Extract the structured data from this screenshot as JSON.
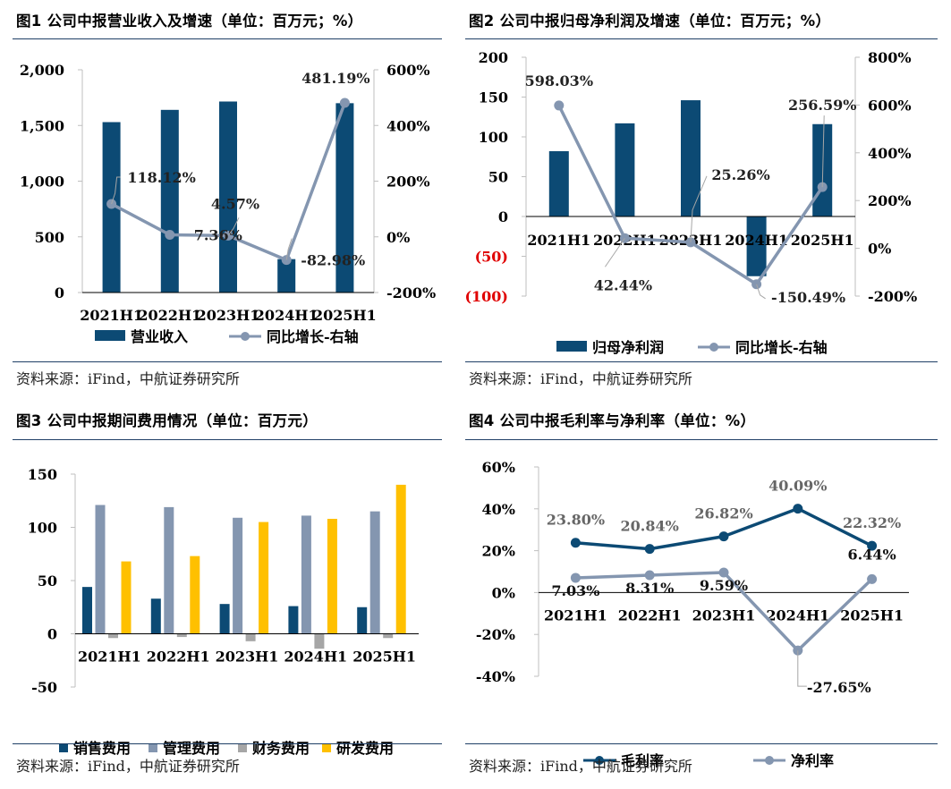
{
  "source_text": "资料来源：iFind，中航证券研究所",
  "colors": {
    "dark_blue": "#0c4a74",
    "grey_blue": "#8496b0",
    "grey": "#a6a6a6",
    "gold": "#ffc000",
    "neg_red": "#e00000",
    "rule": "#1f3f66"
  },
  "charts": [
    {
      "title": "图1  公司中报营业收入及增速（单位：百万元；%）",
      "chart_data": {
        "type": "bar+line",
        "categories": [
          "2021H1",
          "2022H1",
          "2023H1",
          "2024H1",
          "2025H1"
        ],
        "bars": {
          "name": "营业收入",
          "values": [
            1530,
            1640,
            1715,
            300,
            1700
          ]
        },
        "line": {
          "name": "同比增长-右轴",
          "values": [
            118.12,
            7.36,
            4.57,
            -82.98,
            481.19
          ],
          "labels": [
            "118.12%",
            "7.36%",
            "4.57%",
            "-82.98%",
            "481.19%"
          ]
        },
        "left_axis": {
          "min": 0,
          "max": 2000,
          "ticks": [
            "0",
            "500",
            "1,000",
            "1,500",
            "2,000"
          ]
        },
        "right_axis": {
          "min": -200,
          "max": 600,
          "ticks": [
            "-200%",
            "0%",
            "200%",
            "400%",
            "600%"
          ]
        }
      }
    },
    {
      "title": "图2  公司中报归母净利润及增速（单位：百万元；%）",
      "chart_data": {
        "type": "bar+line",
        "categories": [
          "2021H1",
          "2022H1",
          "2023H1",
          "2024H1",
          "2025H1"
        ],
        "bars": {
          "name": "归母净利润",
          "values": [
            82,
            117,
            146,
            -75,
            116
          ]
        },
        "line": {
          "name": "同比增长-右轴",
          "values": [
            598.03,
            42.44,
            25.26,
            -150.49,
            256.59
          ],
          "labels": [
            "598.03%",
            "42.44%",
            "25.26%",
            "-150.49%",
            "256.59%"
          ]
        },
        "left_axis": {
          "min": -100,
          "max": 200,
          "ticks": [
            "(100)",
            "(50)",
            "0",
            "50",
            "100",
            "150",
            "200"
          ]
        },
        "right_axis": {
          "min": -200,
          "max": 800,
          "ticks": [
            "-200%",
            "0%",
            "200%",
            "400%",
            "600%",
            "800%"
          ]
        }
      }
    },
    {
      "title": "图3  公司中报期间费用情况（单位：百万元）",
      "chart_data": {
        "type": "bar",
        "categories": [
          "2021H1",
          "2022H1",
          "2023H1",
          "2024H1",
          "2025H1"
        ],
        "series": [
          {
            "name": "销售费用",
            "values": [
              44,
              33,
              28,
              26,
              25
            ]
          },
          {
            "name": "管理费用",
            "values": [
              121,
              119,
              109,
              111,
              115
            ]
          },
          {
            "name": "财务费用",
            "values": [
              -4,
              -3,
              -7,
              -14,
              -4
            ]
          },
          {
            "name": "研发费用",
            "values": [
              68,
              73,
              105,
              108,
              140
            ]
          }
        ],
        "y_axis": {
          "min": -50,
          "max": 150,
          "ticks": [
            "-50",
            "0",
            "50",
            "100",
            "150"
          ]
        }
      }
    },
    {
      "title": "图4  公司中报毛利率与净利率（单位：%）",
      "chart_data": {
        "type": "line",
        "categories": [
          "2021H1",
          "2022H1",
          "2023H1",
          "2024H1",
          "2025H1"
        ],
        "series": [
          {
            "name": "毛利率",
            "values": [
              23.8,
              20.84,
              26.82,
              40.09,
              22.32
            ],
            "labels": [
              "23.80%",
              "20.84%",
              "26.82%",
              "40.09%",
              "22.32%"
            ]
          },
          {
            "name": "净利率",
            "values": [
              7.03,
              8.31,
              9.59,
              -27.65,
              6.44
            ],
            "labels": [
              "7.03%",
              "8.31%",
              "9.59%",
              "-27.65%",
              "6.44%"
            ]
          }
        ],
        "y_axis": {
          "min": -40,
          "max": 60,
          "ticks": [
            "-40%",
            "-20%",
            "0%",
            "20%",
            "40%",
            "60%"
          ]
        }
      }
    }
  ]
}
